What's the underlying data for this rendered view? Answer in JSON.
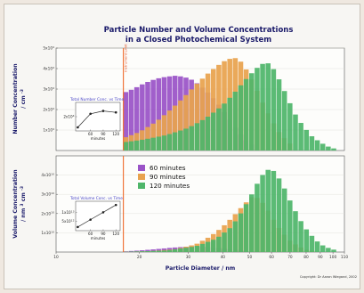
{
  "chart_data": [
    {
      "panel": "number",
      "type": "bar",
      "title_line1": "Particle Number and Volume Concentrations",
      "title_line2": "in a Closed Photochemical System",
      "ylabel_line1": "Number Concentration",
      "ylabel_line2": "/ cm",
      "ylabel_sup": "-3",
      "xscale": "log",
      "xlim": [
        10,
        110
      ],
      "ylim": [
        0,
        50000
      ],
      "yticks": [
        {
          "value": 10000,
          "base": "1x10",
          "exp": "4"
        },
        {
          "value": 20000,
          "base": "2x10",
          "exp": "4"
        },
        {
          "value": 30000,
          "base": "3x10",
          "exp": "4"
        },
        {
          "value": 40000,
          "base": "4x10",
          "exp": "4"
        },
        {
          "value": 50000,
          "base": "5x10",
          "exp": "4"
        }
      ],
      "annotation": "Instrument Limit",
      "limit_x": 17.5,
      "series": [
        {
          "name": "60 minutes",
          "color": "#9a53c7",
          "points": [
            [
              17.5,
              28000
            ],
            [
              19,
              30000
            ],
            [
              21,
              33000
            ],
            [
              23,
              35000
            ],
            [
              25,
              36000
            ],
            [
              27,
              36500
            ],
            [
              29,
              36000
            ],
            [
              31,
              34500
            ],
            [
              33,
              32000
            ],
            [
              35,
              29000
            ],
            [
              38,
              24000
            ],
            [
              41,
              18000
            ],
            [
              44,
              12000
            ],
            [
              47,
              7000
            ],
            [
              50,
              3500
            ],
            [
              53,
              1500
            ]
          ]
        },
        {
          "name": "90 minutes",
          "color": "#e8a24e",
          "points": [
            [
              17.5,
              6000
            ],
            [
              20,
              9000
            ],
            [
              23,
              14000
            ],
            [
              26,
              20000
            ],
            [
              29,
              26000
            ],
            [
              32,
              32000
            ],
            [
              35,
              37000
            ],
            [
              38,
              41000
            ],
            [
              41,
              44000
            ],
            [
              44,
              45500
            ],
            [
              47,
              43000
            ],
            [
              50,
              37000
            ],
            [
              53,
              30000
            ],
            [
              56,
              23000
            ],
            [
              60,
              15000
            ],
            [
              64,
              9000
            ],
            [
              68,
              5000
            ],
            [
              72,
              2000
            ]
          ]
        },
        {
          "name": "120 minutes",
          "color": "#4fb66a",
          "points": [
            [
              17.5,
              4000
            ],
            [
              20,
              5000
            ],
            [
              25,
              7500
            ],
            [
              30,
              11000
            ],
            [
              35,
              16000
            ],
            [
              40,
              22000
            ],
            [
              44,
              28000
            ],
            [
              48,
              34000
            ],
            [
              52,
              39000
            ],
            [
              55,
              42000
            ],
            [
              58,
              43000
            ],
            [
              61,
              40000
            ],
            [
              65,
              33000
            ],
            [
              69,
              25000
            ],
            [
              73,
              18000
            ],
            [
              78,
              12000
            ],
            [
              84,
              7000
            ],
            [
              90,
              4000
            ],
            [
              96,
              2000
            ],
            [
              102,
              800
            ]
          ]
        }
      ],
      "inset": {
        "title": "Total Number Conc. vs Time",
        "xlabel": "minutes",
        "xticks": [
          60,
          90,
          120
        ],
        "yticks": [
          {
            "value": 20000,
            "base": "2x10",
            "exp": "4"
          }
        ],
        "series_points": [
          [
            30,
            5000
          ],
          [
            60,
            24000
          ],
          [
            90,
            28000
          ],
          [
            120,
            26000
          ]
        ],
        "xlim": [
          25,
          130
        ],
        "ylim": [
          0,
          40000
        ]
      }
    },
    {
      "panel": "volume",
      "type": "bar",
      "ylabel_line1": "Volume Concentration",
      "ylabel_line2": "/ nm",
      "ylabel_sup1": "3",
      "ylabel_mid": "cm",
      "ylabel_sup2": "-3",
      "xlabel": "Particle Diameter / nm",
      "xscale": "log",
      "xlim": [
        10,
        110
      ],
      "ylim": [
        0,
        50000000000
      ],
      "yticks": [
        {
          "value": 10000000000,
          "base": "1x10",
          "exp": "10"
        },
        {
          "value": 20000000000,
          "base": "2x10",
          "exp": "10"
        },
        {
          "value": 30000000000,
          "base": "3x10",
          "exp": "10"
        },
        {
          "value": 40000000000,
          "base": "4x10",
          "exp": "10"
        }
      ],
      "xticks": [
        10,
        20,
        30,
        40,
        50,
        60,
        70,
        80,
        90,
        100,
        110
      ],
      "series": [
        {
          "name": "60 minutes",
          "color": "#9a53c7",
          "points": [
            [
              17.5,
              300000000
            ],
            [
              20,
              800000000
            ],
            [
              23,
              1500000000
            ],
            [
              26,
              2200000000
            ],
            [
              29,
              2700000000
            ],
            [
              32,
              2900000000
            ],
            [
              35,
              2700000000
            ],
            [
              38,
              2200000000
            ],
            [
              42,
              1500000000
            ],
            [
              46,
              900000000
            ],
            [
              50,
              400000000
            ],
            [
              55,
              100000000
            ]
          ]
        },
        {
          "name": "90 minutes",
          "color": "#e8a24e",
          "points": [
            [
              17.5,
              100000000
            ],
            [
              22,
              500000000
            ],
            [
              27,
              1500000000
            ],
            [
              32,
              4000000000
            ],
            [
              36,
              8000000000
            ],
            [
              40,
              13000000000
            ],
            [
              44,
              19000000000
            ],
            [
              48,
              25000000000
            ],
            [
              51,
              28500000000
            ],
            [
              54,
              28000000000
            ],
            [
              57,
              24000000000
            ],
            [
              61,
              17000000000
            ],
            [
              65,
              11000000000
            ],
            [
              70,
              6000000000
            ],
            [
              75,
              3000000000
            ],
            [
              80,
              1200000000
            ],
            [
              86,
              400000000
            ]
          ]
        },
        {
          "name": "120 minutes",
          "color": "#4fb66a",
          "points": [
            [
              17.5,
              100000000
            ],
            [
              25,
              800000000
            ],
            [
              32,
              3000000000
            ],
            [
              38,
              7000000000
            ],
            [
              43,
              13000000000
            ],
            [
              47,
              21000000000
            ],
            [
              51,
              30000000000
            ],
            [
              54,
              37000000000
            ],
            [
              57,
              42000000000
            ],
            [
              60,
              43500000000
            ],
            [
              63,
              40000000000
            ],
            [
              67,
              33000000000
            ],
            [
              71,
              25000000000
            ],
            [
              76,
              17000000000
            ],
            [
              81,
              11000000000
            ],
            [
              87,
              6000000000
            ],
            [
              93,
              3000000000
            ],
            [
              99,
              1500000000
            ],
            [
              105,
              700000000
            ]
          ]
        }
      ],
      "inset": {
        "title": "Total Volume Conc. vs Time",
        "xlabel": "minutes",
        "xticks": [
          60,
          90,
          120
        ],
        "yticks": [
          {
            "value": 10000000000000,
            "base": "1x10",
            "exp": "13"
          },
          {
            "value": 5000000000000,
            "base": "5x10",
            "exp": "12"
          }
        ],
        "series_points": [
          [
            30,
            2000000000000
          ],
          [
            60,
            6000000000000
          ],
          [
            90,
            10000000000000
          ],
          [
            120,
            14000000000000
          ]
        ],
        "xlim": [
          25,
          130
        ],
        "ylim": [
          0,
          16000000000000
        ]
      }
    }
  ],
  "copyright": "Copyright: Dr Aaron Wiegand, 2002"
}
